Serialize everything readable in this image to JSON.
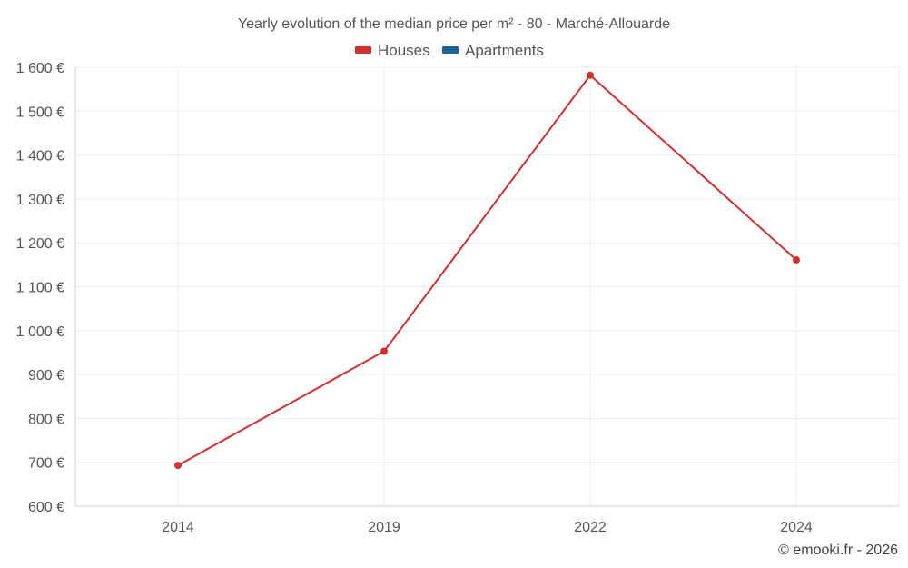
{
  "chart_data": {
    "type": "line",
    "title": "Yearly evolution of the median price per m² - 80 - Marché-Allouarde",
    "categories": [
      "2014",
      "2019",
      "2022",
      "2024"
    ],
    "series": [
      {
        "name": "Houses",
        "color": "#d32f2f",
        "values": [
          693,
          953,
          1582,
          1161
        ]
      },
      {
        "name": "Apartments",
        "color": "#1a6496",
        "values": [
          null,
          null,
          null,
          null
        ]
      }
    ],
    "ylim": [
      600,
      1600
    ],
    "ytick_values": [
      600,
      700,
      800,
      900,
      1000,
      1100,
      1200,
      1300,
      1400,
      1500,
      1600
    ],
    "ytick_labels": [
      "600 €",
      "700 €",
      "800 €",
      "900 €",
      "1 000 €",
      "1 100 €",
      "1 200 €",
      "1 300 €",
      "1 400 €",
      "1 500 €",
      "1 600 €"
    ],
    "xlabel": "",
    "ylabel": "",
    "grid": true,
    "legend_position": "top-center"
  },
  "footer": {
    "copyright": "© emooki.fr - 2026"
  }
}
